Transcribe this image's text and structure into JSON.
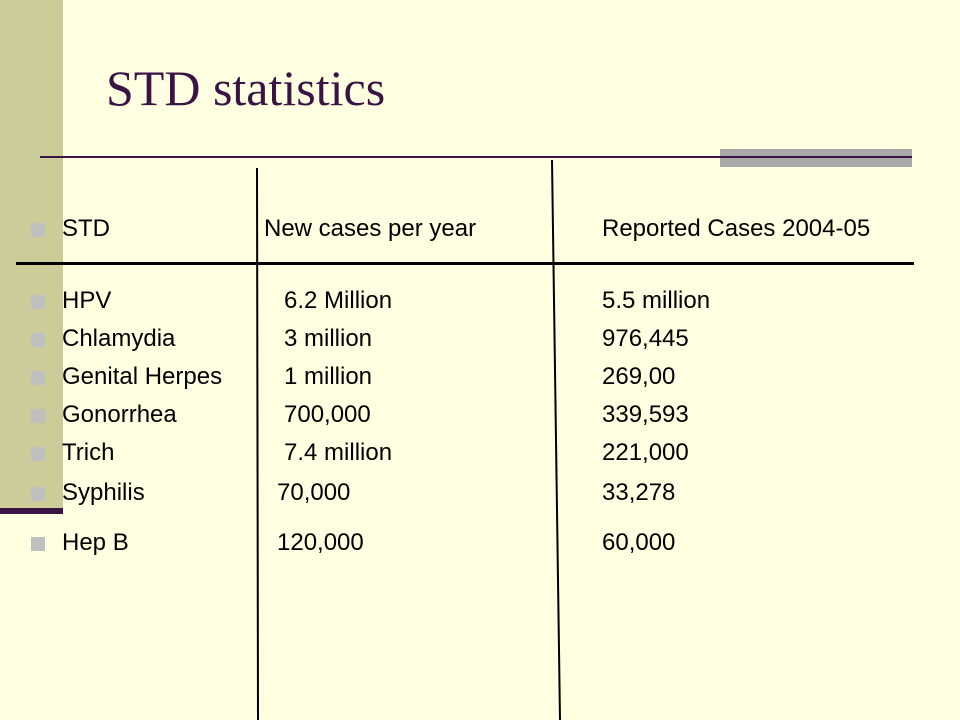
{
  "slide": {
    "title": "STD statistics"
  },
  "table": {
    "headers": [
      "STD",
      "New cases per year",
      "Reported Cases 2004-05"
    ],
    "rows": [
      [
        "HPV",
        "6.2 Million",
        "5.5 million"
      ],
      [
        "Chlamydia",
        "3 million",
        "976,445"
      ],
      [
        "Genital Herpes",
        "1 million",
        "269,00"
      ],
      [
        "Gonorrhea",
        "700,000",
        "339,593"
      ],
      [
        "Trich",
        "7.4 million",
        "221,000"
      ],
      [
        "Syphilis",
        "70,000",
        "33,278"
      ],
      [
        "Hep B",
        "120,000",
        "60,000"
      ]
    ]
  },
  "colors": {
    "background": "#FFFFE1",
    "title": "#3A1444",
    "left_bar": "#CCCC99",
    "bullet": "#C0C0C0"
  }
}
